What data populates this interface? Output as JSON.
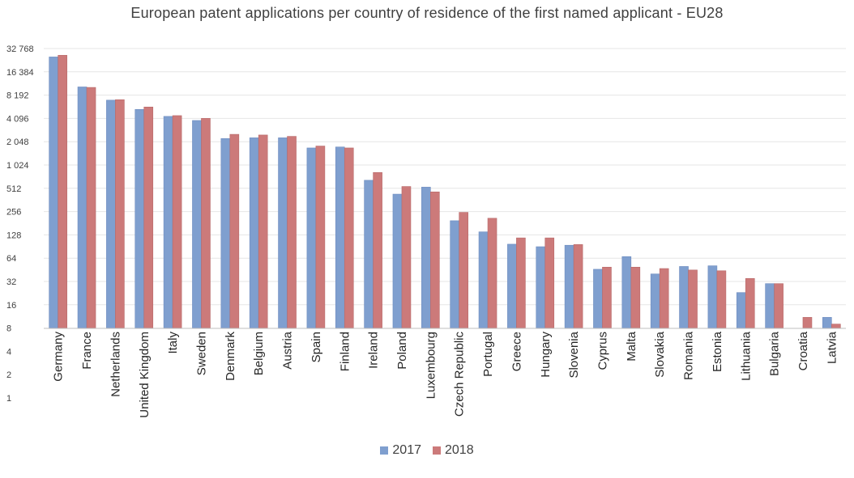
{
  "chart_data": {
    "type": "bar",
    "title": "European patent applications per country of residence of the first named applicant - EU28",
    "xlabel": "",
    "ylabel": "",
    "y_scale": "log2",
    "ylim": [
      1,
      32768
    ],
    "y_ticks": [
      1,
      2,
      4,
      8,
      16,
      32,
      64,
      128,
      256,
      512,
      1024,
      2048,
      4096,
      8192,
      16384,
      32768
    ],
    "y_tick_labels": [
      "1",
      "2",
      "4",
      "8",
      "16",
      "32",
      "64",
      "128",
      "256",
      "512",
      "1 024",
      "2 048",
      "4 096",
      "8 192",
      "16 384",
      "32 768"
    ],
    "grid": true,
    "legend_position": "bottom",
    "categories": [
      "Germany",
      "France",
      "Netherlands",
      "United Kingdom",
      "Italy",
      "Sweden",
      "Denmark",
      "Belgium",
      "Austria",
      "Spain",
      "Finland",
      "Ireland",
      "Poland",
      "Luxembourg",
      "Czech Republic",
      "Portugal",
      "Greece",
      "Hungary",
      "Slovenia",
      "Cyprus",
      "Malta",
      "Slovakia",
      "Romania",
      "Estonia",
      "Lithuania",
      "Bulgaria",
      "Croatia",
      "Latvia"
    ],
    "series": [
      {
        "name": "2017",
        "color": "#7f9fcf",
        "values": [
          25500,
          10450,
          7050,
          5350,
          4350,
          3850,
          2250,
          2300,
          2300,
          1700,
          1750,
          650,
          430,
          530,
          195,
          140,
          97,
          90,
          94,
          46,
          67,
          40,
          50,
          51,
          23,
          30,
          null,
          11
        ]
      },
      {
        "name": "2018",
        "color": "#cc7a7a",
        "values": [
          26800,
          10300,
          7150,
          5750,
          4450,
          4100,
          2550,
          2500,
          2400,
          1800,
          1700,
          820,
          540,
          460,
          250,
          210,
          117,
          117,
          96,
          49,
          49,
          47,
          45,
          44,
          35,
          30,
          11,
          9
        ]
      }
    ]
  }
}
